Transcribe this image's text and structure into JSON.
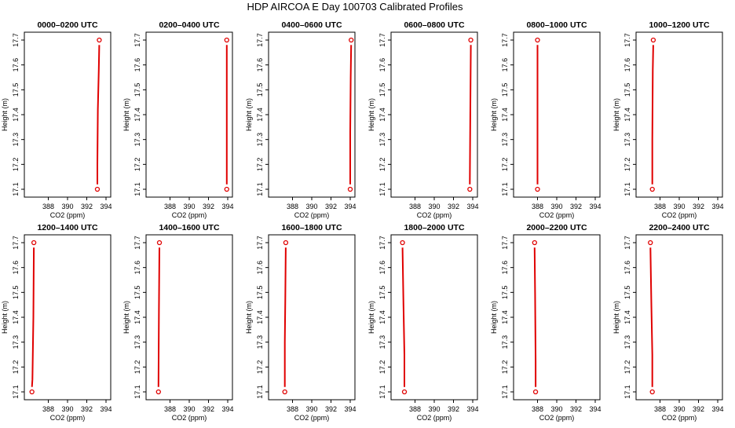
{
  "title": "HDP AIRCOA E  Day 100703  Calibrated Profiles",
  "chart_data": [
    {
      "type": "line",
      "title": "0000–0200 UTC",
      "xlabel": "CO2 (ppm)",
      "ylabel": "Height (m)",
      "xlim": [
        386,
        394
      ],
      "ylim": [
        17.1,
        17.7
      ],
      "xticks": [
        "388",
        "390",
        "392",
        "394"
      ],
      "yticks": [
        "17.1",
        "17.2",
        "17.3",
        "17.4",
        "17.5",
        "17.6",
        "17.7"
      ],
      "points": [
        {
          "x": 393.1,
          "y": 17.1
        },
        {
          "x": 393.3,
          "y": 17.7
        }
      ],
      "trace": [
        [
          393.1,
          17.12
        ],
        [
          393.1,
          17.2
        ],
        [
          393.15,
          17.42
        ],
        [
          393.25,
          17.58
        ],
        [
          393.3,
          17.68
        ]
      ]
    },
    {
      "type": "line",
      "title": "0200–0400 UTC",
      "xlabel": "CO2 (ppm)",
      "ylabel": "Height (m)",
      "xlim": [
        386,
        394
      ],
      "ylim": [
        17.1,
        17.7
      ],
      "xticks": [
        "388",
        "390",
        "392",
        "394"
      ],
      "yticks": [
        "17.1",
        "17.2",
        "17.3",
        "17.4",
        "17.5",
        "17.6",
        "17.7"
      ],
      "points": [
        {
          "x": 393.9,
          "y": 17.1
        },
        {
          "x": 393.9,
          "y": 17.7
        }
      ],
      "trace": [
        [
          393.9,
          17.12
        ],
        [
          393.9,
          17.68
        ]
      ]
    },
    {
      "type": "line",
      "title": "0400–0600 UTC",
      "xlabel": "CO2 (ppm)",
      "ylabel": "Height (m)",
      "xlim": [
        386,
        394
      ],
      "ylim": [
        17.1,
        17.7
      ],
      "xticks": [
        "388",
        "390",
        "392",
        "394"
      ],
      "yticks": [
        "17.1",
        "17.2",
        "17.3",
        "17.4",
        "17.5",
        "17.6",
        "17.7"
      ],
      "points": [
        {
          "x": 394.0,
          "y": 17.1
        },
        {
          "x": 394.1,
          "y": 17.7
        }
      ],
      "trace": [
        [
          394.0,
          17.12
        ],
        [
          394.0,
          17.33
        ],
        [
          394.05,
          17.55
        ],
        [
          394.1,
          17.68
        ]
      ]
    },
    {
      "type": "line",
      "title": "0600–0800 UTC",
      "xlabel": "CO2 (ppm)",
      "ylabel": "Height (m)",
      "xlim": [
        386,
        394
      ],
      "ylim": [
        17.1,
        17.7
      ],
      "xticks": [
        "388",
        "390",
        "392",
        "394"
      ],
      "yticks": [
        "17.1",
        "17.2",
        "17.3",
        "17.4",
        "17.5",
        "17.6",
        "17.7"
      ],
      "points": [
        {
          "x": 393.7,
          "y": 17.1
        },
        {
          "x": 393.8,
          "y": 17.7
        }
      ],
      "trace": [
        [
          393.7,
          17.12
        ],
        [
          393.75,
          17.4
        ],
        [
          393.8,
          17.68
        ]
      ]
    },
    {
      "type": "line",
      "title": "0800–1000 UTC",
      "xlabel": "CO2 (ppm)",
      "ylabel": "Height (m)",
      "xlim": [
        386,
        394
      ],
      "ylim": [
        17.1,
        17.7
      ],
      "xticks": [
        "388",
        "390",
        "392",
        "394"
      ],
      "yticks": [
        "17.1",
        "17.2",
        "17.3",
        "17.4",
        "17.5",
        "17.6",
        "17.7"
      ],
      "points": [
        {
          "x": 388.0,
          "y": 17.1
        },
        {
          "x": 388.0,
          "y": 17.7
        }
      ],
      "trace": [
        [
          388.0,
          17.12
        ],
        [
          388.0,
          17.68
        ]
      ]
    },
    {
      "type": "line",
      "title": "1000–1200 UTC",
      "xlabel": "CO2 (ppm)",
      "ylabel": "Height (m)",
      "xlim": [
        386,
        394
      ],
      "ylim": [
        17.1,
        17.7
      ],
      "xticks": [
        "388",
        "390",
        "392",
        "394"
      ],
      "yticks": [
        "17.1",
        "17.2",
        "17.3",
        "17.4",
        "17.5",
        "17.6",
        "17.7"
      ],
      "points": [
        {
          "x": 387.2,
          "y": 17.1
        },
        {
          "x": 387.3,
          "y": 17.7
        }
      ],
      "trace": [
        [
          387.2,
          17.12
        ],
        [
          387.2,
          17.3
        ],
        [
          387.25,
          17.58
        ],
        [
          387.3,
          17.68
        ]
      ]
    },
    {
      "type": "line",
      "title": "1200–1400 UTC",
      "xlabel": "CO2 (ppm)",
      "ylabel": "Height (m)",
      "xlim": [
        386,
        394
      ],
      "ylim": [
        17.1,
        17.7
      ],
      "xticks": [
        "388",
        "390",
        "392",
        "394"
      ],
      "yticks": [
        "17.1",
        "17.2",
        "17.3",
        "17.4",
        "17.5",
        "17.6",
        "17.7"
      ],
      "points": [
        {
          "x": 386.3,
          "y": 17.1
        },
        {
          "x": 386.5,
          "y": 17.7
        }
      ],
      "trace": [
        [
          386.3,
          17.12
        ],
        [
          386.35,
          17.15
        ],
        [
          386.45,
          17.4
        ],
        [
          386.5,
          17.68
        ]
      ]
    },
    {
      "type": "line",
      "title": "1400–1600 UTC",
      "xlabel": "CO2 (ppm)",
      "ylabel": "Height (m)",
      "xlim": [
        386,
        394
      ],
      "ylim": [
        17.1,
        17.7
      ],
      "xticks": [
        "388",
        "390",
        "392",
        "394"
      ],
      "yticks": [
        "17.1",
        "17.2",
        "17.3",
        "17.4",
        "17.5",
        "17.6",
        "17.7"
      ],
      "points": [
        {
          "x": 386.8,
          "y": 17.1
        },
        {
          "x": 386.9,
          "y": 17.7
        }
      ],
      "trace": [
        [
          386.8,
          17.12
        ],
        [
          386.85,
          17.43
        ],
        [
          386.9,
          17.68
        ]
      ]
    },
    {
      "type": "line",
      "title": "1600–1800 UTC",
      "xlabel": "CO2 (ppm)",
      "ylabel": "Height (m)",
      "xlim": [
        386,
        394
      ],
      "ylim": [
        17.1,
        17.7
      ],
      "xticks": [
        "388",
        "390",
        "392",
        "394"
      ],
      "yticks": [
        "17.1",
        "17.2",
        "17.3",
        "17.4",
        "17.5",
        "17.6",
        "17.7"
      ],
      "points": [
        {
          "x": 387.2,
          "y": 17.1
        },
        {
          "x": 387.3,
          "y": 17.7
        }
      ],
      "trace": [
        [
          387.2,
          17.12
        ],
        [
          387.2,
          17.3
        ],
        [
          387.25,
          17.47
        ],
        [
          387.3,
          17.68
        ]
      ]
    },
    {
      "type": "line",
      "title": "1800–2000 UTC",
      "xlabel": "CO2 (ppm)",
      "ylabel": "Height (m)",
      "xlim": [
        386,
        394
      ],
      "ylim": [
        17.1,
        17.7
      ],
      "xticks": [
        "388",
        "390",
        "392",
        "394"
      ],
      "yticks": [
        "17.1",
        "17.2",
        "17.3",
        "17.4",
        "17.5",
        "17.6",
        "17.7"
      ],
      "points": [
        {
          "x": 386.9,
          "y": 17.1
        },
        {
          "x": 386.7,
          "y": 17.7
        }
      ],
      "trace": [
        [
          386.9,
          17.12
        ],
        [
          386.9,
          17.25
        ],
        [
          386.8,
          17.45
        ],
        [
          386.7,
          17.68
        ]
      ]
    },
    {
      "type": "line",
      "title": "2000–2200 UTC",
      "xlabel": "CO2 (ppm)",
      "ylabel": "Height (m)",
      "xlim": [
        386,
        394
      ],
      "ylim": [
        17.1,
        17.7
      ],
      "xticks": [
        "388",
        "390",
        "392",
        "394"
      ],
      "yticks": [
        "17.1",
        "17.2",
        "17.3",
        "17.4",
        "17.5",
        "17.6",
        "17.7"
      ],
      "points": [
        {
          "x": 387.8,
          "y": 17.1
        },
        {
          "x": 387.7,
          "y": 17.7
        }
      ],
      "trace": [
        [
          387.8,
          17.12
        ],
        [
          387.8,
          17.22
        ],
        [
          387.75,
          17.5
        ],
        [
          387.7,
          17.68
        ]
      ]
    },
    {
      "type": "line",
      "title": "2200–2400 UTC",
      "xlabel": "CO2 (ppm)",
      "ylabel": "Height (m)",
      "xlim": [
        386,
        394
      ],
      "ylim": [
        17.1,
        17.7
      ],
      "xticks": [
        "388",
        "390",
        "392",
        "394"
      ],
      "yticks": [
        "17.1",
        "17.2",
        "17.3",
        "17.4",
        "17.5",
        "17.6",
        "17.7"
      ],
      "points": [
        {
          "x": 387.2,
          "y": 17.1
        },
        {
          "x": 387.0,
          "y": 17.7
        }
      ],
      "trace": [
        [
          387.2,
          17.12
        ],
        [
          387.2,
          17.25
        ],
        [
          387.1,
          17.45
        ],
        [
          387.0,
          17.68
        ]
      ]
    }
  ],
  "colors": {
    "series": "#e00000",
    "axis": "#000000",
    "background": "#ffffff"
  }
}
